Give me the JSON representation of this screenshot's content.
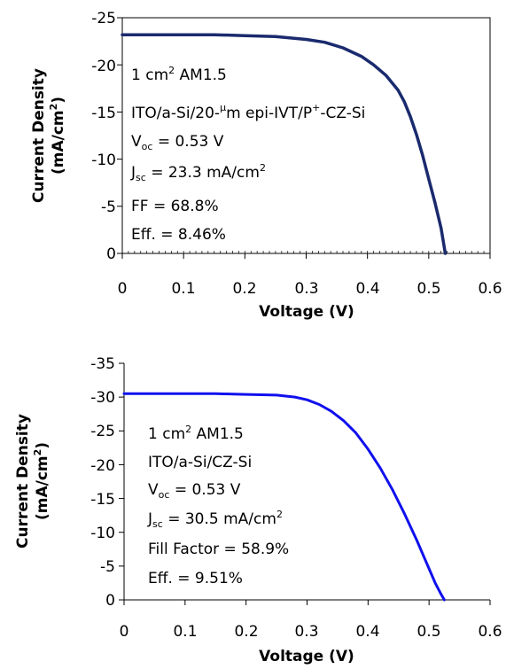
{
  "chart_data": [
    {
      "type": "line",
      "title": "",
      "xlabel": "Voltage (V)",
      "ylabel_line1": "Current Density",
      "ylabel_line2": "(mA/cm",
      "ylabel_sup": "2",
      "ylabel_close": ")",
      "xlim": [
        0,
        0.6
      ],
      "ylim": [
        0,
        -25
      ],
      "x_ticks": [
        "0",
        "0.1",
        "0.2",
        "0.3",
        "0.4",
        "0.5",
        "0.6"
      ],
      "y_ticks": [
        "0",
        "-5",
        "-10",
        "-15",
        "-20",
        "-25"
      ],
      "grid": false,
      "color": "#1a2a6e",
      "annotations": {
        "l1_a": "1 cm",
        "l1_sup": "2",
        "l1_b": " AM1.5",
        "l2_a": "ITO/a-Si/20-",
        "l2_sup1": "μ",
        "l2_b": "m epi-IVT/P",
        "l2_sup2": "+",
        "l2_c": "-CZ-Si",
        "l3_a": "V",
        "l3_sub": "oc",
        "l3_b": " = 0.53 V",
        "l4_a": "J",
        "l4_sub": "sc",
        "l4_b": " = 23.3 mA/cm",
        "l4_sup": "2",
        "l5": "FF = 68.8%",
        "l6": "Eff. = 8.46%"
      },
      "series": [
        {
          "x": [
            0,
            0.05,
            0.1,
            0.15,
            0.2,
            0.25,
            0.3,
            0.33,
            0.36,
            0.39,
            0.41,
            0.43,
            0.45,
            0.46,
            0.47,
            0.48,
            0.49,
            0.5,
            0.51,
            0.52,
            0.527
          ],
          "y": [
            -23.2,
            -23.2,
            -23.2,
            -23.2,
            -23.1,
            -23.0,
            -22.7,
            -22.4,
            -21.8,
            -20.9,
            -20.0,
            -18.9,
            -17.3,
            -16.1,
            -14.5,
            -12.6,
            -10.4,
            -7.9,
            -5.4,
            -2.7,
            0
          ]
        }
      ]
    },
    {
      "type": "line",
      "title": "",
      "xlabel": "Voltage (V)",
      "ylabel_line1": "Current Density",
      "ylabel_line2": "(mA/cm",
      "ylabel_sup": "2",
      "ylabel_close": ")",
      "xlim": [
        0,
        0.6
      ],
      "ylim": [
        0,
        -35
      ],
      "x_ticks": [
        "0",
        "0.1",
        "0.2",
        "0.3",
        "0.4",
        "0.5",
        "0.6"
      ],
      "y_ticks": [
        "0",
        "-5",
        "-10",
        "-15",
        "-20",
        "-25",
        "-30",
        "-35"
      ],
      "grid": false,
      "color": "#1010ee",
      "annotations": {
        "l1_a": "1 cm",
        "l1_sup": "2",
        "l1_b": " AM1.5",
        "l2": "ITO/a-Si/CZ-Si",
        "l3_a": "V",
        "l3_sub": "oc",
        "l3_b": " = 0.53 V",
        "l4_a": "J",
        "l4_sub": "sc",
        "l4_b": " = 30.5 mA/cm",
        "l4_sup": "2",
        "l5": "Fill Factor = 58.9%",
        "l6": "Eff. = 9.51%"
      },
      "series": [
        {
          "x": [
            0,
            0.05,
            0.1,
            0.15,
            0.2,
            0.25,
            0.28,
            0.3,
            0.32,
            0.34,
            0.36,
            0.38,
            0.4,
            0.42,
            0.44,
            0.46,
            0.48,
            0.5,
            0.51,
            0.52,
            0.525
          ],
          "y": [
            -30.5,
            -30.5,
            -30.5,
            -30.5,
            -30.4,
            -30.3,
            -30.0,
            -29.6,
            -28.9,
            -27.9,
            -26.5,
            -24.7,
            -22.3,
            -19.5,
            -16.3,
            -12.7,
            -8.8,
            -4.6,
            -2.5,
            -0.8,
            0
          ]
        }
      ]
    }
  ]
}
